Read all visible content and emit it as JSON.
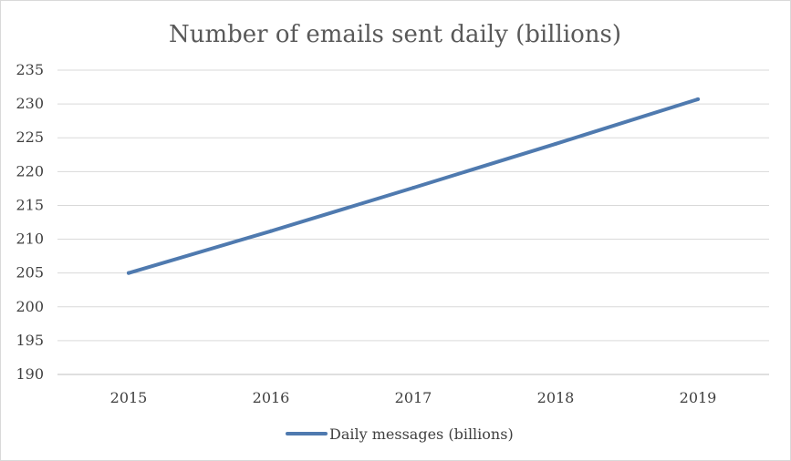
{
  "chart_data": {
    "type": "line",
    "title": "Number of emails sent daily (billions)",
    "xlabel": "",
    "ylabel": "",
    "categories": [
      "2015",
      "2016",
      "2017",
      "2018",
      "2019"
    ],
    "series": [
      {
        "name": "Daily messages (billions)",
        "values": [
          205,
          211.2,
          217.6,
          224.1,
          230.7
        ],
        "color": "#4f7aaf"
      }
    ],
    "ylim": [
      190,
      235
    ],
    "yticks": [
      "190",
      "195",
      "200",
      "205",
      "210",
      "215",
      "220",
      "225",
      "230",
      "235"
    ],
    "grid": true,
    "legend": "bottom",
    "gridline_color": "#d9d9d9",
    "axis_color": "#bfbfbf"
  }
}
